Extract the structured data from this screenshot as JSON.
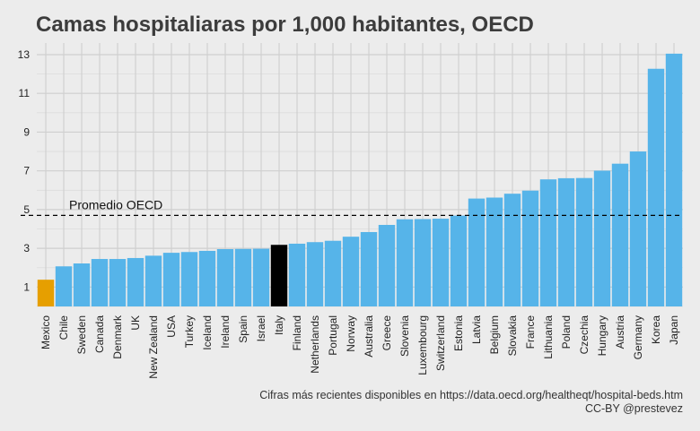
{
  "chart_data": {
    "type": "bar",
    "title": "Camas hospitaliaras por 1,000 habitantes, OECD",
    "categories": [
      "Mexico",
      "Chile",
      "Sweden",
      "Canada",
      "Denmark",
      "UK",
      "New Zealand",
      "USA",
      "Turkey",
      "Iceland",
      "Ireland",
      "Spain",
      "Israel",
      "Italy",
      "Finland",
      "Netherlands",
      "Portugal",
      "Norway",
      "Australia",
      "Greece",
      "Slovenia",
      "Luxembourg",
      "Switzerland",
      "Estonia",
      "Latvia",
      "Belgium",
      "Slovakia",
      "France",
      "Lithuania",
      "Poland",
      "Czechia",
      "Hungary",
      "Austria",
      "Germany",
      "Korea",
      "Japan"
    ],
    "values": [
      1.38,
      2.07,
      2.22,
      2.45,
      2.45,
      2.5,
      2.62,
      2.77,
      2.81,
      2.87,
      2.96,
      2.97,
      2.98,
      3.18,
      3.24,
      3.32,
      3.39,
      3.6,
      3.84,
      4.21,
      4.5,
      4.51,
      4.53,
      4.69,
      5.57,
      5.62,
      5.82,
      5.98,
      6.56,
      6.62,
      6.63,
      7.01,
      7.37,
      8.0,
      12.27,
      13.05
    ],
    "bar_colors": {
      "default": "#56b4e9",
      "Mexico": "#e69f00",
      "Italy": "#000000"
    },
    "ylim": [
      0,
      13.6
    ],
    "yticks": [
      1,
      3,
      5,
      7,
      9,
      11,
      13
    ],
    "grid": true,
    "reference_line": {
      "value": 4.7,
      "label": "Promedio OECD",
      "style": "dashed"
    },
    "caption": {
      "line1": "Cifras más recientes disponibles en https://data.oecd.org/healtheqt/hospital-beds.htm",
      "line2": "CC-BY @prestevez"
    }
  }
}
